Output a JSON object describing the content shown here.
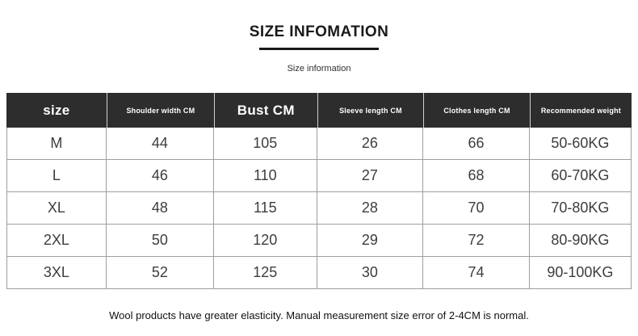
{
  "header": {
    "title": "SIZE INFOMATION",
    "subtitle": "Size information"
  },
  "table": {
    "columns": [
      {
        "label": "size"
      },
      {
        "label": "Shoulder width CM"
      },
      {
        "label": "Bust CM"
      },
      {
        "label": "Sleeve length CM"
      },
      {
        "label": "Clothes length CM"
      },
      {
        "label": "Recommended weight"
      }
    ],
    "rows": [
      [
        "M",
        "44",
        "105",
        "26",
        "66",
        "50-60KG"
      ],
      [
        "L",
        "46",
        "110",
        "27",
        "68",
        "60-70KG"
      ],
      [
        "XL",
        "48",
        "115",
        "28",
        "70",
        "70-80KG"
      ],
      [
        "2XL",
        "50",
        "120",
        "29",
        "72",
        "80-90KG"
      ],
      [
        "3XL",
        "52",
        "125",
        "30",
        "74",
        "90-100KG"
      ]
    ]
  },
  "footer": {
    "note": "Wool products have greater elasticity. Manual measurement size error of 2-4CM is normal."
  },
  "colors": {
    "header_bg": "#2d2d2d",
    "header_text": "#ffffff",
    "grid_line": "#9e9e9e",
    "cell_text": "#3d3d3d"
  }
}
